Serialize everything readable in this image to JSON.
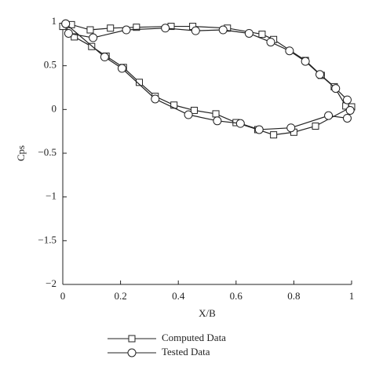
{
  "chart_data": {
    "type": "line",
    "x_label": "X/B",
    "y_label": "Cps",
    "xlim": [
      0,
      1
    ],
    "ylim": [
      -2,
      1
    ],
    "xticks": [
      0,
      0.2,
      0.4,
      0.6,
      0.8,
      1
    ],
    "yticks": [
      1,
      0.5,
      0,
      {
        "value": -0.5,
        "label": "−0.5"
      },
      {
        "value": -1,
        "label": "−1"
      },
      {
        "value": -1.5,
        "label": "−1.5"
      },
      {
        "value": -2,
        "label": "−2"
      }
    ],
    "series": [
      {
        "name": "Computed Data",
        "color": "#222222",
        "marker": "square",
        "x": [
          0,
          0.03,
          0.095,
          0.165,
          0.255,
          0.375,
          0.45,
          0.57,
          0.69,
          0.73,
          0.84,
          0.895,
          0.94,
          0.98,
          1.0,
          0.875,
          0.8,
          0.73,
          0.675,
          0.6,
          0.53,
          0.455,
          0.385,
          0.32,
          0.265,
          0.21,
          0.15,
          0.1,
          0.04,
          0
        ],
        "values": [
          0.95,
          0.97,
          0.91,
          0.93,
          0.94,
          0.95,
          0.95,
          0.93,
          0.86,
          0.8,
          0.56,
          0.39,
          0.26,
          0.04,
          0.03,
          -0.19,
          -0.26,
          -0.29,
          -0.23,
          -0.15,
          -0.05,
          -0.01,
          0.05,
          0.15,
          0.31,
          0.48,
          0.61,
          0.72,
          0.83,
          0.95
        ]
      },
      {
        "name": "Tested Data",
        "color": "#222222",
        "marker": "circle",
        "x": [
          0.01,
          0.02,
          0.105,
          0.22,
          0.355,
          0.46,
          0.555,
          0.645,
          0.72,
          0.785,
          0.84,
          0.89,
          0.945,
          0.985,
          0.995,
          0.985,
          0.92,
          0.79,
          0.68,
          0.615,
          0.535,
          0.435,
          0.32,
          0.205,
          0.145,
          0.01
        ],
        "values": [
          0.98,
          0.87,
          0.82,
          0.91,
          0.93,
          0.9,
          0.91,
          0.87,
          0.77,
          0.67,
          0.55,
          0.4,
          0.24,
          0.11,
          -0.01,
          -0.1,
          -0.07,
          -0.21,
          -0.23,
          -0.16,
          -0.13,
          -0.06,
          0.12,
          0.47,
          0.6,
          0.98
        ]
      }
    ]
  }
}
